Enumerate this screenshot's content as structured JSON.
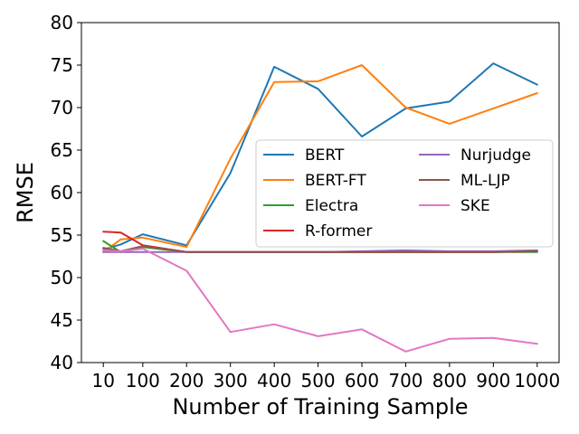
{
  "chart_data": {
    "type": "line",
    "title": "",
    "xlabel": "Number of Training Sample",
    "ylabel": "RMSE",
    "x": [
      10,
      50,
      100,
      200,
      300,
      400,
      500,
      600,
      700,
      800,
      900,
      1000
    ],
    "xtick_values": [
      10,
      100,
      200,
      300,
      400,
      500,
      600,
      700,
      800,
      900,
      1000
    ],
    "xtick_labels": [
      "10",
      "100",
      "200",
      "300",
      "400",
      "500",
      "600",
      "700",
      "800",
      "900",
      "1000"
    ],
    "xlim": [
      -40,
      1050
    ],
    "ylim": [
      40,
      80
    ],
    "yticks": [
      40,
      45,
      50,
      55,
      60,
      65,
      70,
      75,
      80
    ],
    "grid": false,
    "legend": {
      "placement": "center-right",
      "columns": 2
    },
    "series": [
      {
        "name": "BERT",
        "color": "#1f77b4",
        "values": [
          53.3,
          53.9,
          55.1,
          53.8,
          62.3,
          74.8,
          72.2,
          66.6,
          69.9,
          70.7,
          75.2,
          72.7
        ]
      },
      {
        "name": "BERT-FT",
        "color": "#ff7f0e",
        "values": [
          53.0,
          54.5,
          54.7,
          53.6,
          64.0,
          73.0,
          73.1,
          75.0,
          70.0,
          68.1,
          69.9,
          71.7
        ]
      },
      {
        "name": "Electra",
        "color": "#2ca02c",
        "values": [
          54.3,
          53.0,
          53.6,
          53.0,
          53.0,
          53.0,
          53.0,
          53.0,
          53.0,
          53.0,
          53.0,
          53.0
        ]
      },
      {
        "name": "R-former",
        "color": "#d62728",
        "values": [
          55.4,
          55.3,
          53.8,
          53.0,
          53.0,
          53.0,
          53.0,
          53.0,
          53.0,
          53.0,
          53.0,
          53.1
        ]
      },
      {
        "name": "Nurjudge",
        "color": "#9467bd",
        "values": [
          53.0,
          53.0,
          53.0,
          53.0,
          53.0,
          53.0,
          53.0,
          53.1,
          53.2,
          53.1,
          53.1,
          53.2
        ]
      },
      {
        "name": "ML-LJP",
        "color": "#8c564b",
        "values": [
          53.5,
          53.1,
          53.7,
          53.0,
          53.0,
          53.0,
          53.0,
          53.0,
          53.0,
          53.0,
          53.0,
          53.1
        ]
      },
      {
        "name": "SKE",
        "color": "#e377c2",
        "values": [
          53.2,
          53.1,
          53.4,
          50.8,
          43.6,
          44.5,
          43.1,
          43.9,
          41.3,
          42.8,
          42.9,
          42.2
        ]
      }
    ]
  }
}
